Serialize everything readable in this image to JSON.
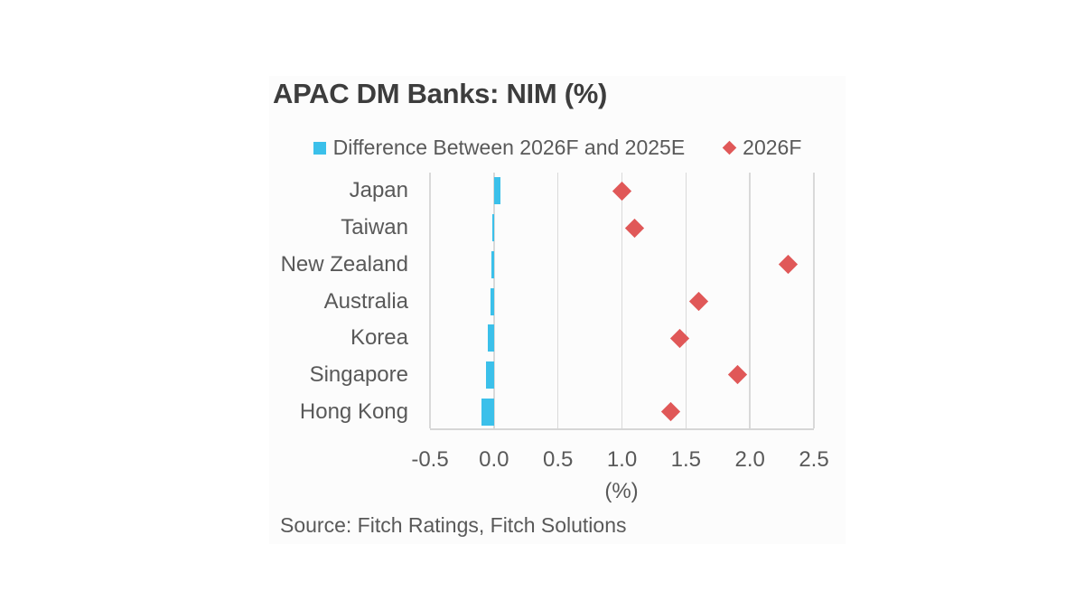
{
  "page": {
    "background": "#ffffff"
  },
  "chart": {
    "title": "APAC DM Banks: NIM (%)",
    "xlabel": "(%)",
    "source": "Source: Fitch Ratings, Fitch Solutions",
    "legend": [
      {
        "label": "Difference Between 2026F and 2025E",
        "marker": "square",
        "color": "#3bc0ea"
      },
      {
        "label": "2026F",
        "marker": "diamond",
        "color": "#e05858"
      }
    ]
  },
  "chart_data": {
    "type": "bar",
    "subtype": "horizontal bar + diamond dot plot",
    "title": "APAC DM Banks: NIM (%)",
    "categories": [
      "Japan",
      "Taiwan",
      "New Zealand",
      "Australia",
      "Korea",
      "Singapore",
      "Hong Kong"
    ],
    "series": [
      {
        "name": "Difference Between 2026F and 2025E",
        "type": "bar",
        "color": "#3bc0ea",
        "values": [
          0.05,
          -0.01,
          -0.02,
          -0.03,
          -0.05,
          -0.06,
          -0.1
        ]
      },
      {
        "name": "2026F",
        "type": "scatter",
        "marker": "diamond",
        "color": "#e05858",
        "values": [
          1.0,
          1.1,
          2.3,
          1.6,
          1.45,
          1.9,
          1.38
        ]
      }
    ],
    "xlabel": "(%)",
    "xlim": [
      -0.5,
      2.5
    ],
    "xticks": [
      -0.5,
      0.0,
      0.5,
      1.0,
      1.5,
      2.0,
      2.5
    ],
    "xtick_labels": [
      "-0.5",
      "0.0",
      "0.5",
      "1.0",
      "1.5",
      "2.0",
      "2.5"
    ],
    "grid": "vertical",
    "gridline_color": "#d9d9d9",
    "legend_position": "top"
  }
}
